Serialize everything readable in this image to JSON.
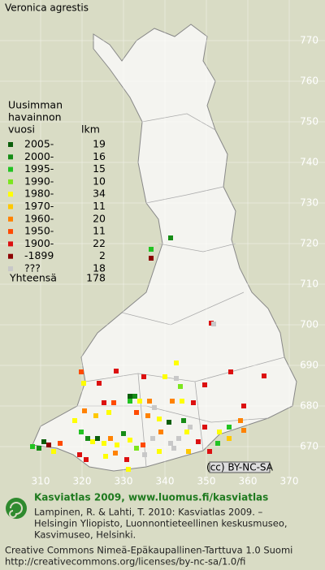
{
  "title": "Veronica agrestis",
  "legend": {
    "heading": [
      "Uusimman",
      "havainnon",
      "vuosi"
    ],
    "count_heading": "lkm",
    "items": [
      {
        "label": "2005-",
        "count": 19,
        "color": "#0b5e0b"
      },
      {
        "label": "2000-",
        "count": 16,
        "color": "#168c16"
      },
      {
        "label": "1995-",
        "count": 15,
        "color": "#22c322"
      },
      {
        "label": "1990-",
        "count": 10,
        "color": "#7ce61e"
      },
      {
        "label": "1980-",
        "count": 34,
        "color": "#ffff00"
      },
      {
        "label": "1970-",
        "count": 11,
        "color": "#ffc800"
      },
      {
        "label": "1960-",
        "count": 20,
        "color": "#ff8200"
      },
      {
        "label": "1950-",
        "count": 11,
        "color": "#ff4a00"
      },
      {
        "label": "1900-",
        "count": 22,
        "color": "#dc1010"
      },
      {
        "label": "-1899",
        "count": 2,
        "color": "#8c0000"
      },
      {
        "label": "???",
        "count": 18,
        "color": "#c8c8c8"
      }
    ],
    "total_label": "Yhteensä",
    "total": 178
  },
  "map": {
    "xticks": [
      310,
      320,
      330,
      340,
      350,
      360,
      370
    ],
    "yticks": [
      770,
      760,
      750,
      740,
      730,
      720,
      710,
      700,
      690,
      680,
      670
    ]
  },
  "footer": {
    "title": "Kasviatlas 2009, www.luomus.fi/kasviatlas",
    "citation": [
      "Lampinen, R. & Lahti, T. 2010: Kasviatlas 2009. –",
      "Helsingin Yliopisto, Luonnontieteellinen keskusmuseo,",
      "Kasvimuseo, Helsinki."
    ],
    "license": [
      "Creative Commons Nimeä-Epäkaupallinen-Tarttuva 1.0 Suomi",
      "http://creativecommons.org/licenses/by-nc-sa/1.0/fi"
    ],
    "badge": "(cc) BY-NC-SA"
  }
}
